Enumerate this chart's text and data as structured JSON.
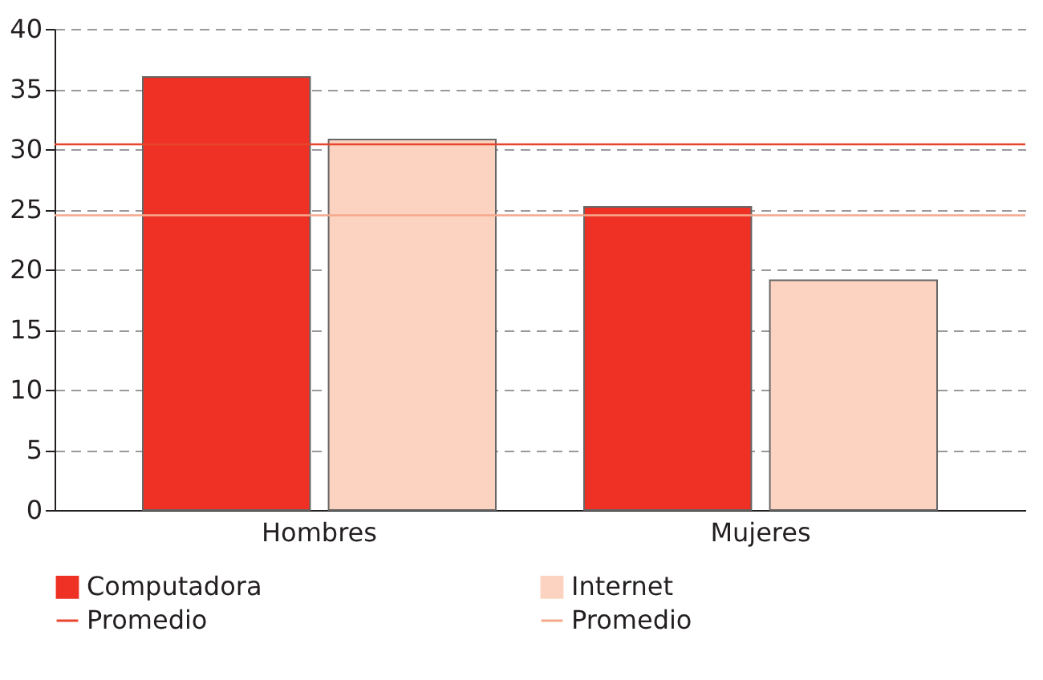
{
  "chart_data": {
    "type": "bar",
    "categories": [
      "Hombres",
      "Mujeres"
    ],
    "series": [
      {
        "name": "Computadora",
        "color": "#ee3124",
        "values": [
          36,
          25.2
        ]
      },
      {
        "name": "Internet",
        "color": "#fcd3c1",
        "values": [
          30.8,
          19.1
        ]
      }
    ],
    "ref_lines": [
      {
        "axis": "y",
        "value": 30.4,
        "label": "Promedio",
        "color": "#e8452c"
      },
      {
        "axis": "y",
        "value": 24.5,
        "label": "Promedio",
        "color": "#f4a98c"
      }
    ],
    "ylim": [
      0,
      40
    ],
    "yticks": [
      0,
      5,
      10,
      15,
      20,
      25,
      30,
      35,
      40
    ],
    "grid": "y",
    "legend": "bottom"
  }
}
